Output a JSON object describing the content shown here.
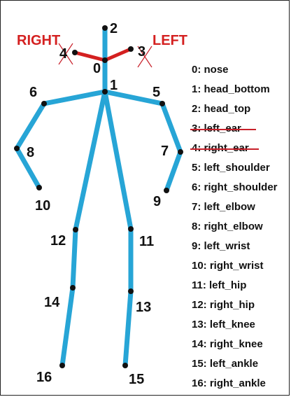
{
  "side_labels": {
    "right": "RIGHT",
    "left": "LEFT"
  },
  "keypoints": [
    "0",
    "1",
    "2",
    "3",
    "4",
    "5",
    "6",
    "7",
    "8",
    "9",
    "10",
    "11",
    "12",
    "13",
    "14",
    "15",
    "16"
  ],
  "legend": [
    {
      "text": "0: nose"
    },
    {
      "text": "1: head_bottom"
    },
    {
      "text": "2: head_top"
    },
    {
      "text": "3: left_ear",
      "struck": true
    },
    {
      "text": "4: right_ear",
      "struck": true
    },
    {
      "text": "5: left_shoulder"
    },
    {
      "text": "6: right_shoulder"
    },
    {
      "text": "7: left_elbow"
    },
    {
      "text": "8: right_elbow"
    },
    {
      "text": "9: left_wrist"
    },
    {
      "text": "10: right_wrist"
    },
    {
      "text": "11: left_hip"
    },
    {
      "text": "12: right_hip"
    },
    {
      "text": "13: left_knee"
    },
    {
      "text": "14: right_knee"
    },
    {
      "text": "15: left_ankle"
    },
    {
      "text": "16: right_ankle"
    }
  ],
  "colors": {
    "limb": "#27a5d6",
    "head": "#d42020",
    "strike": "#c8202a",
    "joint": "#111111"
  }
}
